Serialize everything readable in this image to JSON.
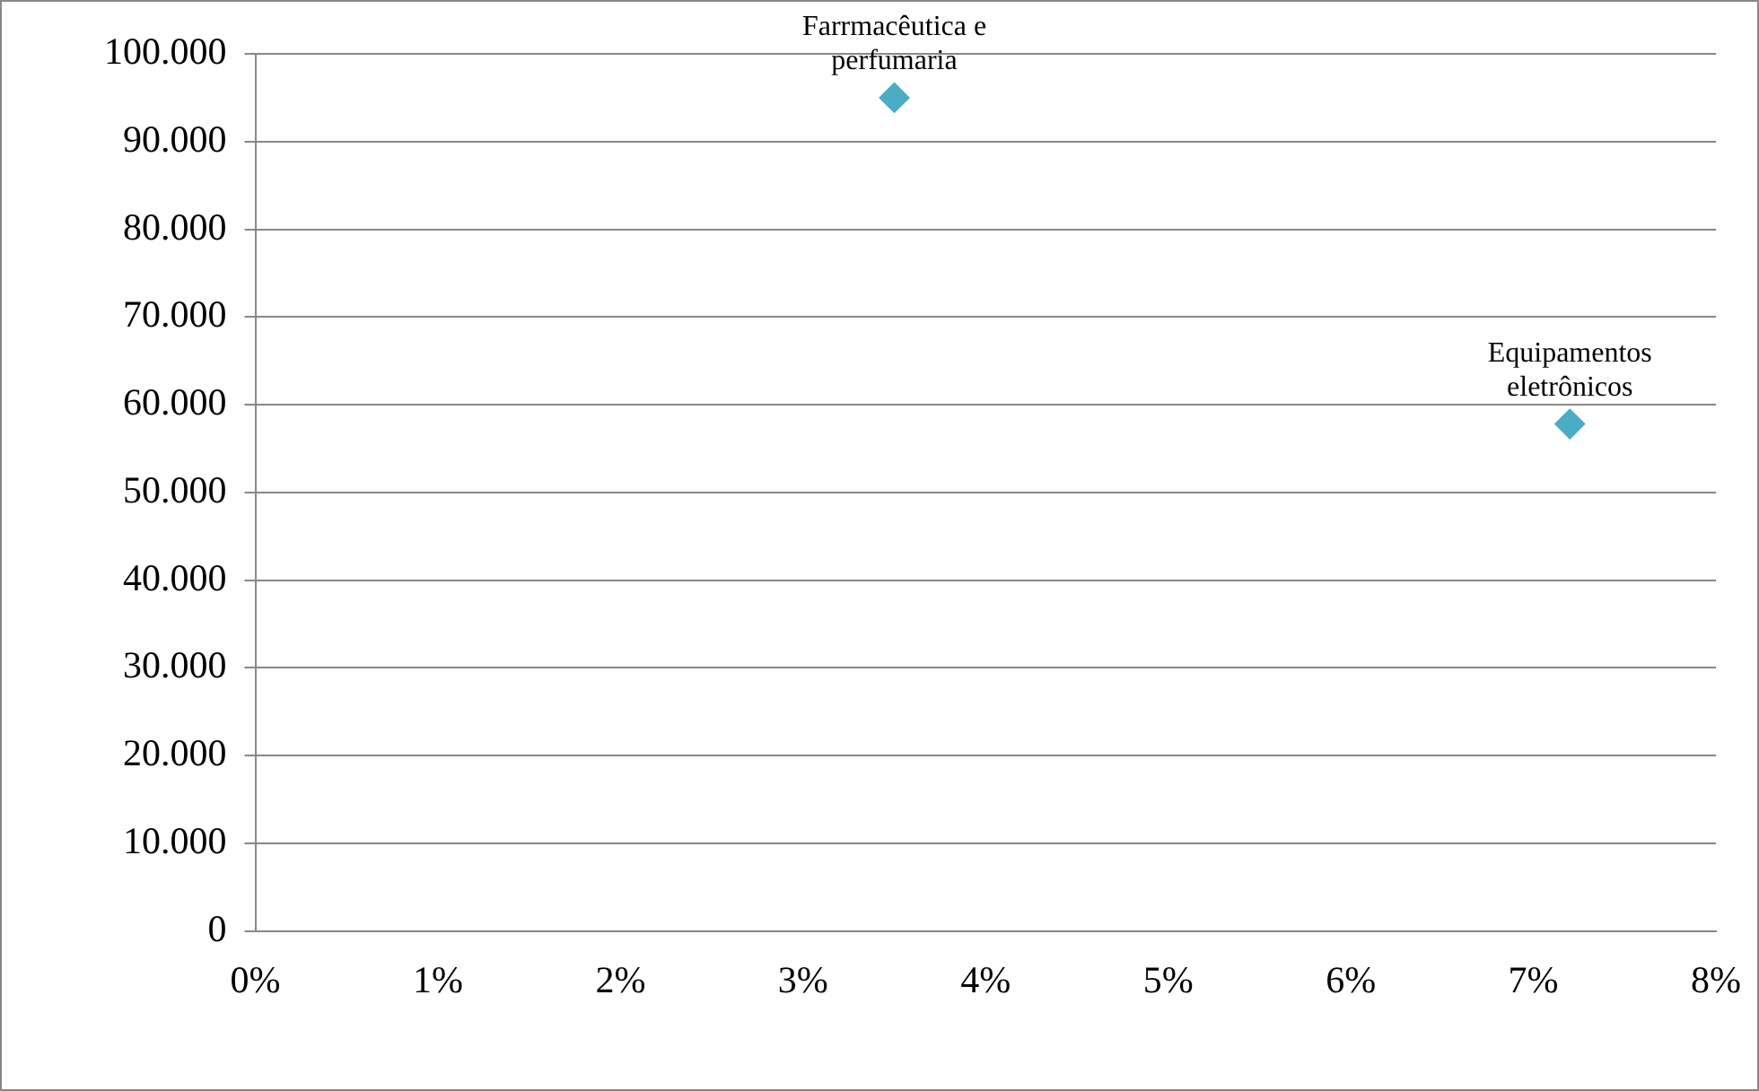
{
  "chart_data": {
    "type": "scatter",
    "x": [
      3.5,
      7.2
    ],
    "values": [
      95000,
      57800
    ],
    "color": "#4bacc6",
    "marker": "diamond",
    "grid": "y",
    "xlim": [
      0,
      8
    ],
    "xticks": [
      {
        "value": 0,
        "label": "0%"
      },
      {
        "value": 1,
        "label": "1%"
      },
      {
        "value": 2,
        "label": "2%"
      },
      {
        "value": 3,
        "label": "3%"
      },
      {
        "value": 4,
        "label": "4%"
      },
      {
        "value": 5,
        "label": "5%"
      },
      {
        "value": 6,
        "label": "6%"
      },
      {
        "value": 7,
        "label": "7%"
      },
      {
        "value": 8,
        "label": "8%"
      }
    ],
    "ylim": [
      0,
      100000
    ],
    "yticks": [
      0,
      {
        "value": 10000,
        "label": "10.000"
      },
      {
        "value": 20000,
        "label": "20.000"
      },
      {
        "value": 30000,
        "label": "30.000"
      },
      {
        "value": 40000,
        "label": "40.000"
      },
      {
        "value": 50000,
        "label": "50.000"
      },
      {
        "value": 60000,
        "label": "60.000"
      },
      {
        "value": 70000,
        "label": "70.000"
      },
      {
        "value": 80000,
        "label": "80.000"
      },
      {
        "value": 90000,
        "label": "90.000"
      },
      {
        "value": 100000,
        "label": "100.000"
      }
    ],
    "annotations": [
      {
        "text": "Farrmacêutica e perfumaria",
        "x": 3.5,
        "y": 95000
      },
      {
        "text": "Equipamentos eletrônicos",
        "x": 7.2,
        "y": 57800
      }
    ]
  }
}
